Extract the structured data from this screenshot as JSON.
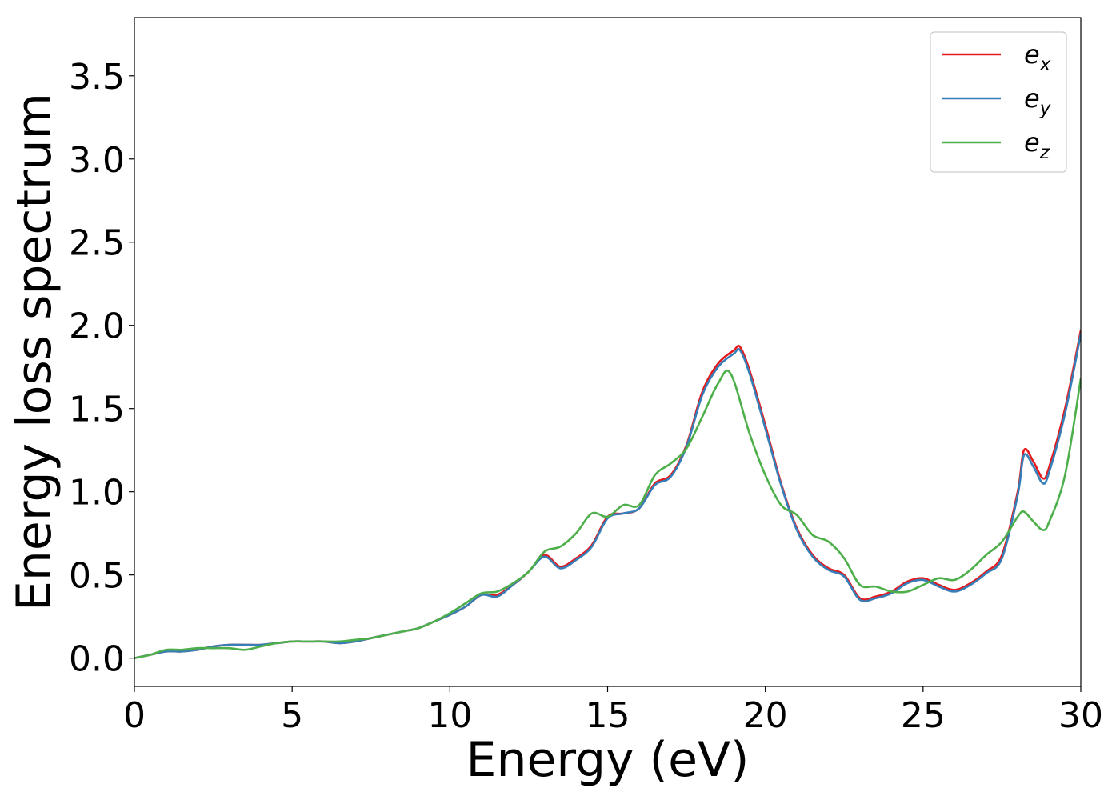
{
  "chart_data": {
    "type": "line",
    "xlabel": "Energy (eV)",
    "ylabel": "Energy loss spectrum",
    "xlim": [
      0,
      30
    ],
    "ylim": [
      -0.17,
      3.85
    ],
    "xticks": [
      0,
      5,
      10,
      15,
      20,
      25,
      30
    ],
    "xtick_labels": [
      "0",
      "5",
      "10",
      "15",
      "20",
      "25",
      "30"
    ],
    "yticks": [
      0.0,
      0.5,
      1.0,
      1.5,
      2.0,
      2.5,
      3.0,
      3.5
    ],
    "ytick_labels": [
      "0.0",
      "0.5",
      "1.0",
      "1.5",
      "2.0",
      "2.5",
      "3.0",
      "3.5"
    ],
    "grid": false,
    "legend_position": "top-right",
    "series": [
      {
        "name": "e_x",
        "label_base": "e",
        "label_sub": "x",
        "color": "#e41a1c",
        "x": [
          0,
          0.5,
          1,
          1.5,
          2,
          2.5,
          3,
          3.5,
          4,
          4.5,
          5,
          5.5,
          6,
          6.5,
          7,
          7.5,
          8,
          8.5,
          9,
          9.5,
          10,
          10.5,
          11,
          11.5,
          12,
          12.5,
          13,
          13.5,
          14,
          14.5,
          15,
          15.5,
          16,
          16.5,
          17,
          17.5,
          18,
          18.5,
          19,
          19.2,
          19.5,
          20,
          20.5,
          21,
          21.5,
          22,
          22.5,
          23,
          23.5,
          24,
          24.5,
          25,
          25.5,
          26,
          26.5,
          27,
          27.5,
          28,
          28.2,
          28.5,
          28.8,
          29,
          29.5,
          30
        ],
        "y": [
          0.0,
          0.02,
          0.04,
          0.04,
          0.05,
          0.07,
          0.08,
          0.08,
          0.08,
          0.09,
          0.1,
          0.1,
          0.1,
          0.09,
          0.1,
          0.12,
          0.14,
          0.16,
          0.18,
          0.22,
          0.26,
          0.31,
          0.38,
          0.38,
          0.44,
          0.52,
          0.62,
          0.55,
          0.6,
          0.68,
          0.85,
          0.87,
          0.9,
          1.05,
          1.1,
          1.28,
          1.6,
          1.77,
          1.85,
          1.87,
          1.73,
          1.4,
          1.05,
          0.78,
          0.62,
          0.54,
          0.5,
          0.36,
          0.37,
          0.4,
          0.46,
          0.48,
          0.44,
          0.41,
          0.45,
          0.52,
          0.62,
          1.0,
          1.25,
          1.18,
          1.08,
          1.15,
          1.5,
          1.97
        ]
      },
      {
        "name": "e_y",
        "label_base": "e",
        "label_sub": "y",
        "color": "#377eb8",
        "x": [
          0,
          0.5,
          1,
          1.5,
          2,
          2.5,
          3,
          3.5,
          4,
          4.5,
          5,
          5.5,
          6,
          6.5,
          7,
          7.5,
          8,
          8.5,
          9,
          9.5,
          10,
          10.5,
          11,
          11.5,
          12,
          12.5,
          13,
          13.5,
          14,
          14.5,
          15,
          15.5,
          16,
          16.5,
          17,
          17.5,
          18,
          18.5,
          19,
          19.2,
          19.5,
          20,
          20.5,
          21,
          21.5,
          22,
          22.5,
          23,
          23.5,
          24,
          24.5,
          25,
          25.5,
          26,
          26.5,
          27,
          27.5,
          28,
          28.2,
          28.5,
          28.8,
          29,
          29.5,
          30
        ],
        "y": [
          0.0,
          0.02,
          0.04,
          0.04,
          0.05,
          0.07,
          0.08,
          0.08,
          0.08,
          0.09,
          0.1,
          0.1,
          0.1,
          0.09,
          0.1,
          0.12,
          0.14,
          0.16,
          0.18,
          0.22,
          0.26,
          0.31,
          0.38,
          0.37,
          0.44,
          0.52,
          0.61,
          0.54,
          0.59,
          0.67,
          0.84,
          0.87,
          0.9,
          1.04,
          1.09,
          1.27,
          1.58,
          1.75,
          1.83,
          1.85,
          1.71,
          1.38,
          1.04,
          0.77,
          0.61,
          0.53,
          0.49,
          0.35,
          0.36,
          0.39,
          0.45,
          0.47,
          0.43,
          0.4,
          0.44,
          0.51,
          0.6,
          0.98,
          1.22,
          1.15,
          1.05,
          1.12,
          1.47,
          1.95
        ]
      },
      {
        "name": "e_z",
        "label_base": "e",
        "label_sub": "z",
        "color": "#4daf4a",
        "x": [
          0,
          0.5,
          1,
          1.5,
          2,
          2.5,
          3,
          3.5,
          4,
          4.5,
          5,
          5.5,
          6,
          6.5,
          7,
          7.5,
          8,
          8.5,
          9,
          9.5,
          10,
          10.5,
          11,
          11.5,
          12,
          12.5,
          13,
          13.5,
          14,
          14.5,
          15,
          15.5,
          16,
          16.5,
          17,
          17.5,
          18,
          18.5,
          18.9,
          19.5,
          20,
          20.5,
          21,
          21.5,
          22,
          22.5,
          23,
          23.5,
          24,
          24.5,
          25,
          25.5,
          26,
          26.5,
          27,
          27.5,
          28,
          28.2,
          28.5,
          28.8,
          29,
          29.5,
          30
        ],
        "y": [
          0.0,
          0.02,
          0.05,
          0.05,
          0.06,
          0.06,
          0.06,
          0.05,
          0.07,
          0.09,
          0.1,
          0.1,
          0.1,
          0.1,
          0.11,
          0.12,
          0.14,
          0.16,
          0.18,
          0.22,
          0.27,
          0.33,
          0.39,
          0.4,
          0.45,
          0.52,
          0.64,
          0.67,
          0.75,
          0.87,
          0.85,
          0.92,
          0.92,
          1.1,
          1.17,
          1.26,
          1.45,
          1.65,
          1.71,
          1.35,
          1.1,
          0.92,
          0.86,
          0.74,
          0.7,
          0.6,
          0.44,
          0.43,
          0.4,
          0.4,
          0.44,
          0.48,
          0.47,
          0.53,
          0.62,
          0.7,
          0.85,
          0.88,
          0.82,
          0.77,
          0.82,
          1.1,
          1.68
        ]
      }
    ]
  }
}
